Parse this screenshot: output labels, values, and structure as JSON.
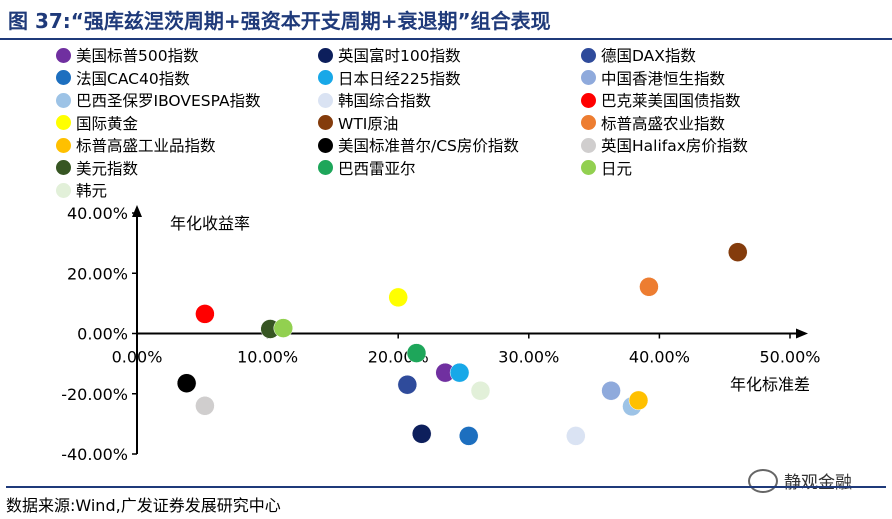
{
  "title": "图 37:“强库兹涅茨周期+强资本开支周期+衰退期”组合表现",
  "source": "数据来源:Wind,广发证券发展研究中心",
  "watermark": "静观金融",
  "chart_data": {
    "type": "scatter",
    "xlabel": "年化标准差",
    "ylabel": "年化收益率",
    "xlim": [
      0,
      0.5
    ],
    "ylim": [
      -0.4,
      0.4
    ],
    "x_ticks": [
      0.0,
      0.1,
      0.2,
      0.3,
      0.4,
      0.5
    ],
    "x_tick_labels": [
      "0.00%",
      "10.00%",
      "20.00%",
      "30.00%",
      "40.00%",
      "50.00%"
    ],
    "y_ticks": [
      0.4,
      0.2,
      0.0,
      -0.2,
      -0.4
    ],
    "y_tick_labels": [
      "40.00%",
      "20.00%",
      "0.00%",
      "-20.00%",
      "-40.00%"
    ],
    "legend_position": "top",
    "series": [
      {
        "name": "美国标普500指数",
        "color": "#7030a0",
        "x": 0.236,
        "y": -0.13
      },
      {
        "name": "英国富时100指数",
        "color": "#0d1f5c",
        "x": 0.218,
        "y": -0.333
      },
      {
        "name": "德国DAX指数",
        "color": "#2f4b9b",
        "x": 0.207,
        "y": -0.17
      },
      {
        "name": "法国CAC40指数",
        "color": "#1d6fbf",
        "x": 0.254,
        "y": -0.34
      },
      {
        "name": "日本日经225指数",
        "color": "#18a8e8",
        "x": 0.247,
        "y": -0.13
      },
      {
        "name": "中国香港恒生指数",
        "color": "#8faadc",
        "x": 0.363,
        "y": -0.19
      },
      {
        "name": "巴西圣保罗IBOVESPA指数",
        "color": "#9dc3e6",
        "x": 0.379,
        "y": -0.242
      },
      {
        "name": "韩国综合指数",
        "color": "#dae3f3",
        "x": 0.336,
        "y": -0.34
      },
      {
        "name": "巴克莱美国国债指数",
        "color": "#ff0000",
        "x": 0.052,
        "y": 0.065
      },
      {
        "name": "国际黄金",
        "color": "#ffff00",
        "x": 0.2,
        "y": 0.12
      },
      {
        "name": "WTI原油",
        "color": "#843c0c",
        "x": 0.46,
        "y": 0.27
      },
      {
        "name": "标普高盛农业指数",
        "color": "#ed7d31",
        "x": 0.392,
        "y": 0.155
      },
      {
        "name": "标普高盛工业品指数",
        "color": "#ffc000",
        "x": 0.384,
        "y": -0.222
      },
      {
        "name": "美国标准普尔/CS房价指数",
        "color": "#000000",
        "x": 0.038,
        "y": -0.165
      },
      {
        "name": "英国Halifax房价指数",
        "color": "#d0cece",
        "x": 0.052,
        "y": -0.24
      },
      {
        "name": "美元指数",
        "color": "#375623",
        "x": 0.102,
        "y": 0.015
      },
      {
        "name": "巴西雷亚尔",
        "color": "#1ea65a",
        "x": 0.214,
        "y": -0.065
      },
      {
        "name": "日元",
        "color": "#92d050",
        "x": 0.112,
        "y": 0.018
      },
      {
        "name": "韩元",
        "color": "#e2f0d9",
        "x": 0.263,
        "y": -0.19
      }
    ]
  }
}
